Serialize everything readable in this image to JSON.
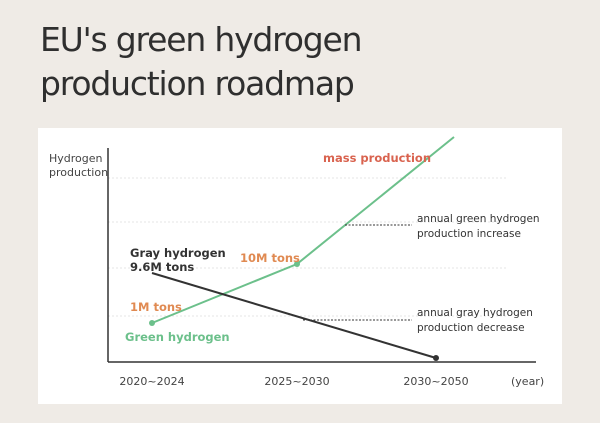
{
  "page": {
    "title_line1": "EU's green hydrogen",
    "title_line2": "production roadmap"
  },
  "chart_data": {
    "type": "line",
    "title": "",
    "ylabel_line1": "Hydrogen",
    "ylabel_line2": "production",
    "xlabel": "(year)",
    "categories": [
      "2020~2024",
      "2025~2030",
      "2030~2050"
    ],
    "grid": true,
    "series": [
      {
        "name": "Green hydrogen",
        "color": "#6cc08b",
        "values": [
          1,
          10,
          null
        ],
        "extends_beyond_axis": true
      },
      {
        "name": "Gray hydrogen",
        "color": "#333333",
        "values": [
          9.6,
          null,
          0
        ]
      }
    ],
    "annotations": {
      "mass_production": "mass production",
      "ten_m_tons": "10M tons",
      "one_m_tons": "1M tons",
      "gray_label_line1": "Gray hydrogen",
      "gray_label_line2": "9.6M tons",
      "green_label": "Green hydrogen",
      "green_increase_line1": "annual green hydrogen",
      "green_increase_line2": "production increase",
      "gray_decrease_line1": "annual gray hydrogen",
      "gray_decrease_line2": "production decrease"
    },
    "colors": {
      "green": "#6cc08b",
      "gray_line": "#333333",
      "orange": "#e08a52",
      "red": "#d9634f",
      "text": "#333333",
      "axis": "#333333",
      "grid": "#e5e5e5"
    }
  }
}
